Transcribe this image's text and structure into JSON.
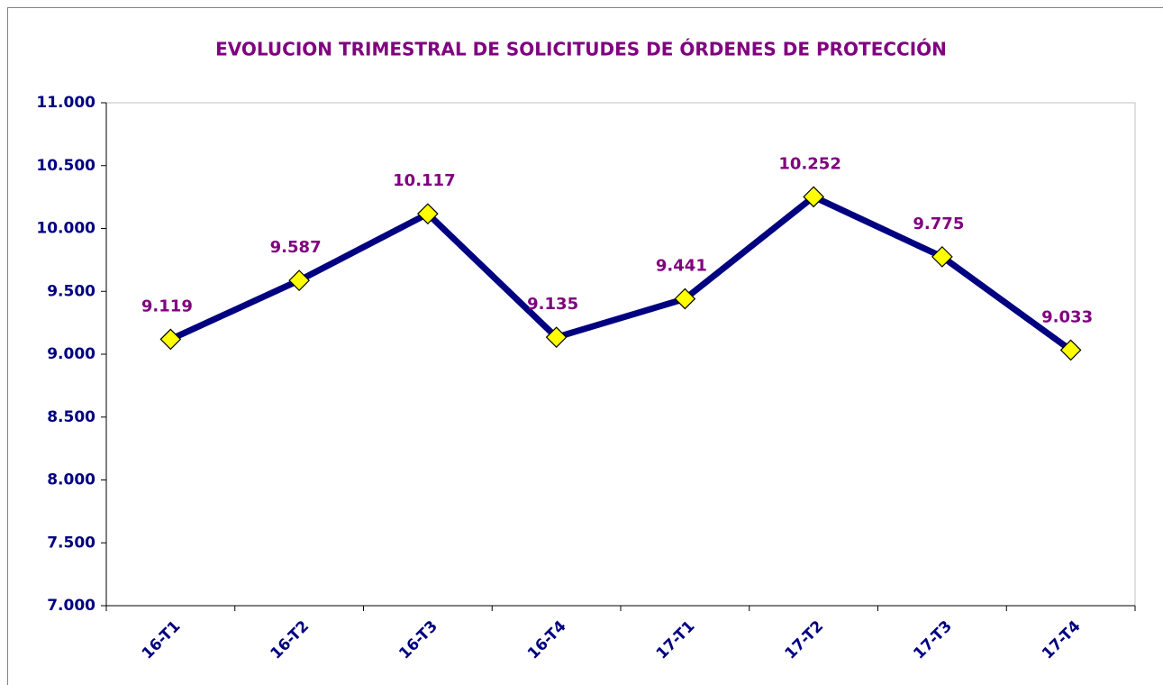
{
  "chart_data": {
    "type": "line",
    "title": "EVOLUCION TRIMESTRAL DE SOLICITUDES DE ÓRDENES DE PROTECCIÓN",
    "categories": [
      "16-T1",
      "16-T2",
      "16-T3",
      "16-T4",
      "17-T1",
      "17-T2",
      "17-T3",
      "17-T4"
    ],
    "values": [
      9119,
      9587,
      10117,
      9135,
      9441,
      10252,
      9775,
      9033
    ],
    "value_labels": [
      "9.119",
      "9.587",
      "10.117",
      "9.135",
      "9.441",
      "10.252",
      "9.775",
      "9.033"
    ],
    "color": "#000080",
    "marker_color": "#ffff00",
    "ylim": [
      7000,
      11000
    ],
    "yticks": [
      {
        "value": 7000,
        "label": "7.000"
      },
      {
        "value": 7500,
        "label": "7.500"
      },
      {
        "value": 8000,
        "label": "8.000"
      },
      {
        "value": 8500,
        "label": "8.500"
      },
      {
        "value": 9000,
        "label": "9.000"
      },
      {
        "value": 9500,
        "label": "9.500"
      },
      {
        "value": 10000,
        "label": "10.000"
      },
      {
        "value": 10500,
        "label": "10.500"
      },
      {
        "value": 11000,
        "label": "11.000"
      }
    ],
    "grid": false
  }
}
